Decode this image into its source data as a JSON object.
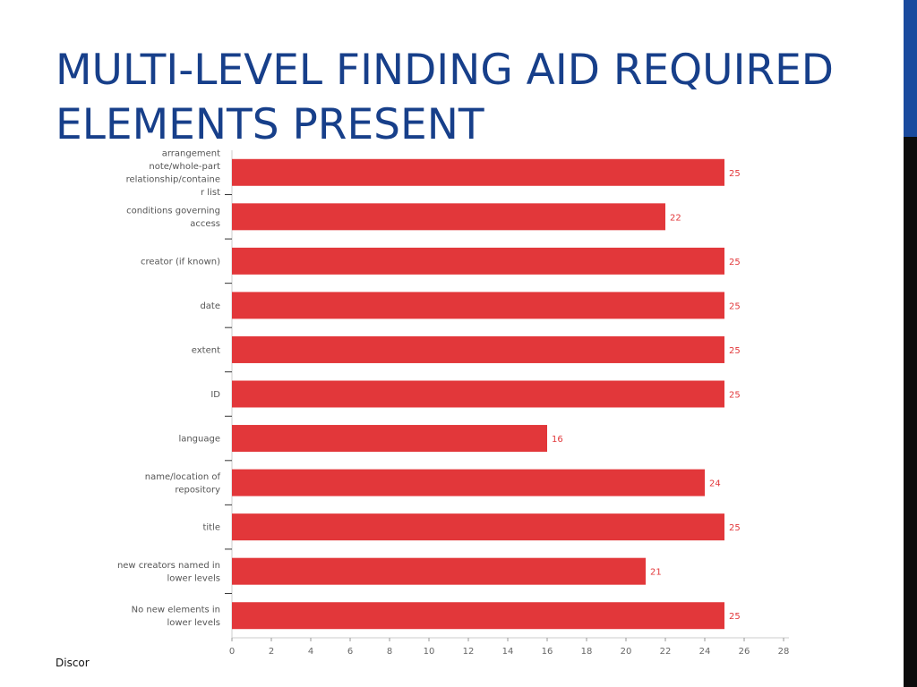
{
  "slide": {
    "title_line1": "MULTI-LEVEL FINDING AID REQUIRED",
    "title_line2": "ELEMENTS PRESENT",
    "footer": "Discor"
  },
  "colors": {
    "title": "#173f8a",
    "bar": "#e2373a",
    "accent_bar_top": "#1a4a9e",
    "accent_bar_bottom": "#0c0c0c"
  },
  "chart_data": {
    "type": "bar",
    "orientation": "horizontal",
    "categories": [
      [
        "arrangement",
        "note/whole-part",
        "relationship/containe",
        "r list"
      ],
      [
        "conditions governing",
        "access"
      ],
      [
        "creator (if known)"
      ],
      [
        "date"
      ],
      [
        "extent"
      ],
      [
        "ID"
      ],
      [
        "language"
      ],
      [
        "name/location of",
        "repository"
      ],
      [
        "title"
      ],
      [
        "new creators named in",
        "lower levels"
      ],
      [
        "No new elements in",
        "lower levels"
      ]
    ],
    "values": [
      25,
      22,
      25,
      25,
      25,
      25,
      16,
      24,
      25,
      21,
      25
    ],
    "xlim": [
      0,
      28
    ],
    "xticks": [
      0,
      2,
      4,
      6,
      8,
      10,
      12,
      14,
      16,
      18,
      20,
      22,
      24,
      26,
      28
    ],
    "data_labels": true,
    "legend": "none",
    "grid": false
  }
}
